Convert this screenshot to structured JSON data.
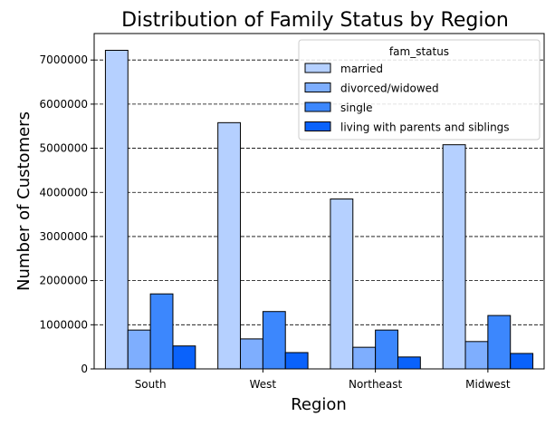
{
  "chart_data": {
    "type": "bar",
    "title": "Distribution of Family Status by Region",
    "xlabel": "Region",
    "ylabel": "Number of Customers",
    "categories": [
      "South",
      "West",
      "Northeast",
      "Midwest"
    ],
    "ylim": [
      0,
      7600000
    ],
    "yticks": [
      0,
      1000000,
      2000000,
      3000000,
      4000000,
      5000000,
      6000000,
      7000000
    ],
    "ytick_labels": [
      "0",
      "1000000",
      "2000000",
      "3000000",
      "4000000",
      "5000000",
      "6000000",
      "7000000"
    ],
    "grid": {
      "axis": "y",
      "style": "dashed"
    },
    "legend": {
      "title": "fam_status",
      "position": "top-right"
    },
    "series": [
      {
        "name": "married",
        "color": "#b5d0ff",
        "values": [
          7220000,
          5580000,
          3850000,
          5080000
        ]
      },
      {
        "name": "divorced/widowed",
        "color": "#7eaefe",
        "values": [
          880000,
          680000,
          490000,
          620000
        ]
      },
      {
        "name": "single",
        "color": "#3c87fd",
        "values": [
          1700000,
          1300000,
          880000,
          1210000
        ]
      },
      {
        "name": "living with parents and siblings",
        "color": "#0a62fb",
        "values": [
          520000,
          370000,
          270000,
          350000
        ]
      }
    ]
  }
}
